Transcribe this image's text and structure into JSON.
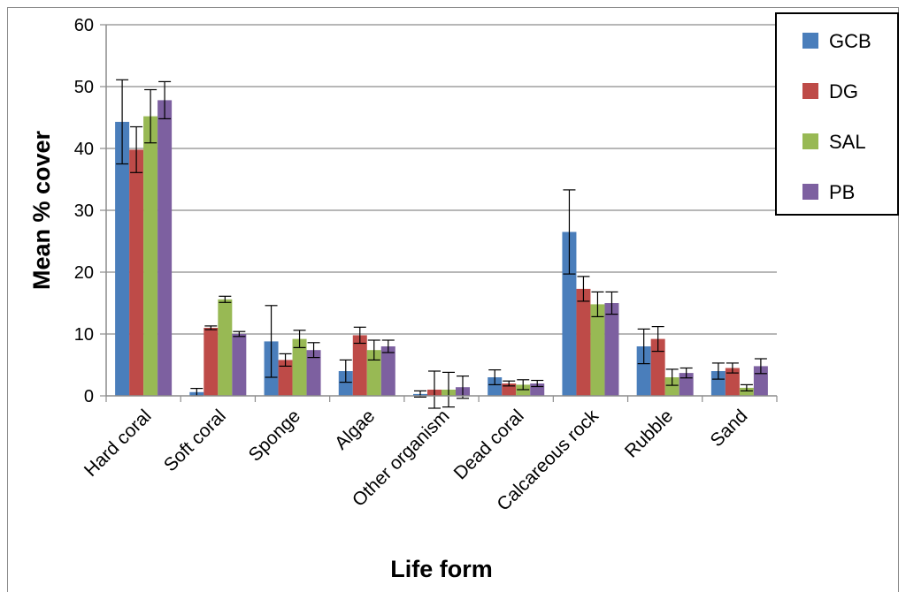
{
  "chart_data": {
    "type": "bar",
    "title": "",
    "xlabel": "Life form",
    "ylabel": "Mean % cover",
    "ylim": [
      0,
      60
    ],
    "yticks": [
      0,
      10,
      20,
      30,
      40,
      50,
      60
    ],
    "grid": true,
    "legend_position": "top-right",
    "categories": [
      "Hard coral",
      "Soft coral",
      "Sponge",
      "Algae",
      "Other organism",
      "Dead coral",
      "Calcareous rock",
      "Rubble",
      "Sand"
    ],
    "series": [
      {
        "name": "GCB",
        "color": "#4A7EBB",
        "values": [
          44.3,
          0.6,
          8.8,
          4.0,
          0.3,
          3.0,
          26.5,
          8.0,
          4.0
        ],
        "errors": [
          6.8,
          0.6,
          5.8,
          1.8,
          0.5,
          1.2,
          6.8,
          2.8,
          1.3
        ]
      },
      {
        "name": "DG",
        "color": "#BE4B48",
        "values": [
          39.8,
          11.0,
          5.8,
          9.8,
          1.0,
          2.0,
          17.3,
          9.2,
          4.5
        ],
        "errors": [
          3.7,
          0.3,
          1.0,
          1.3,
          3.0,
          0.4,
          2.0,
          2.0,
          0.8
        ]
      },
      {
        "name": "SAL",
        "color": "#98B954",
        "values": [
          45.2,
          15.6,
          9.2,
          7.4,
          1.0,
          1.8,
          14.8,
          3.0,
          1.3
        ],
        "errors": [
          4.3,
          0.5,
          1.4,
          1.6,
          2.8,
          0.8,
          2.0,
          1.3,
          0.5
        ]
      },
      {
        "name": "PB",
        "color": "#7D60A0",
        "values": [
          47.8,
          10.0,
          7.4,
          8.0,
          1.4,
          2.0,
          15.0,
          3.7,
          4.8
        ],
        "errors": [
          3.0,
          0.4,
          1.2,
          1.0,
          1.8,
          0.5,
          1.8,
          0.8,
          1.2
        ]
      }
    ]
  }
}
